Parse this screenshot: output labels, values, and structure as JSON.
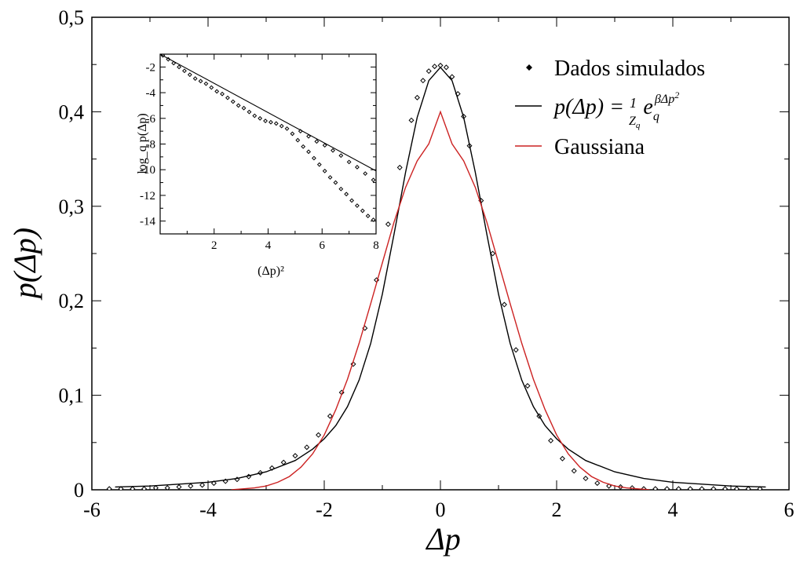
{
  "chart_data": [
    {
      "type": "scatter",
      "role": "main",
      "xlabel": "Δp",
      "ylabel": "p(Δp)",
      "xlim": [
        -6,
        6
      ],
      "ylim": [
        0,
        0.5
      ],
      "x_ticks": [
        "-6",
        "-4",
        "-2",
        "0",
        "2",
        "4",
        "6"
      ],
      "y_ticks": [
        "0",
        "0,1",
        "0,2",
        "0,3",
        "0,4",
        "0,5"
      ],
      "grid": false,
      "legend_position": "top-right",
      "legend": [
        "Dados simulados",
        "p(Δp) = (1/Z_q) e_q^(βΔp²)",
        "Gaussiana"
      ],
      "series": [
        {
          "name": "Dados simulados",
          "kind": "markers",
          "marker": "diamond",
          "color": "#000000",
          "x": [
            -5.7,
            -5.5,
            -5.3,
            -5.1,
            -4.9,
            -4.7,
            -4.5,
            -4.3,
            -4.1,
            -3.9,
            -3.7,
            -3.5,
            -3.3,
            -3.1,
            -2.9,
            -2.7,
            -2.5,
            -2.3,
            -2.1,
            -1.9,
            -1.7,
            -1.5,
            -1.3,
            -1.1,
            -0.9,
            -0.7,
            -0.5,
            -0.4,
            -0.3,
            -0.2,
            -0.1,
            0.0,
            0.1,
            0.2,
            0.3,
            0.4,
            0.5,
            0.7,
            0.9,
            1.1,
            1.3,
            1.5,
            1.7,
            1.9,
            2.1,
            2.3,
            2.5,
            2.7,
            2.9,
            3.1,
            3.3,
            3.5,
            3.7,
            3.9,
            4.1,
            4.3,
            4.5,
            4.7,
            4.9,
            5.1,
            5.3,
            5.5
          ],
          "y": [
            0.001,
            0.001,
            0.001,
            0.001,
            0.002,
            0.002,
            0.003,
            0.004,
            0.005,
            0.007,
            0.009,
            0.011,
            0.014,
            0.018,
            0.023,
            0.029,
            0.036,
            0.045,
            0.058,
            0.078,
            0.103,
            0.133,
            0.171,
            0.222,
            0.281,
            0.341,
            0.391,
            0.415,
            0.433,
            0.443,
            0.448,
            0.449,
            0.447,
            0.437,
            0.419,
            0.395,
            0.364,
            0.306,
            0.25,
            0.196,
            0.148,
            0.11,
            0.078,
            0.052,
            0.033,
            0.02,
            0.012,
            0.007,
            0.004,
            0.003,
            0.002,
            0.001,
            0.001,
            0.001,
            0.001,
            0.001,
            0.001,
            0.001,
            0.001,
            0.001,
            0.001,
            0.001
          ]
        },
        {
          "name": "p(Δp) = (1/Z_q) e_q^(βΔp²)",
          "kind": "line",
          "color": "#000000",
          "x": [
            -5.6,
            -5.0,
            -4.5,
            -4.0,
            -3.5,
            -3.0,
            -2.5,
            -2.2,
            -2.0,
            -1.8,
            -1.6,
            -1.4,
            -1.2,
            -1.0,
            -0.8,
            -0.6,
            -0.4,
            -0.2,
            0.0,
            0.2,
            0.4,
            0.6,
            0.8,
            1.0,
            1.2,
            1.4,
            1.6,
            1.8,
            2.0,
            2.2,
            2.5,
            3.0,
            3.5,
            4.0,
            4.5,
            5.0,
            5.6
          ],
          "y": [
            0.003,
            0.004,
            0.006,
            0.008,
            0.012,
            0.019,
            0.031,
            0.043,
            0.054,
            0.068,
            0.088,
            0.116,
            0.155,
            0.207,
            0.27,
            0.336,
            0.394,
            0.433,
            0.447,
            0.433,
            0.394,
            0.336,
            0.27,
            0.207,
            0.155,
            0.116,
            0.088,
            0.068,
            0.054,
            0.043,
            0.031,
            0.019,
            0.012,
            0.008,
            0.006,
            0.004,
            0.003
          ]
        },
        {
          "name": "Gaussiana",
          "kind": "line",
          "color": "#cc2222",
          "x": [
            -3.6,
            -3.4,
            -3.2,
            -3.0,
            -2.8,
            -2.6,
            -2.4,
            -2.2,
            -2.0,
            -1.8,
            -1.6,
            -1.4,
            -1.2,
            -1.0,
            -0.8,
            -0.6,
            -0.4,
            -0.2,
            0.0,
            0.2,
            0.4,
            0.6,
            0.8,
            1.0,
            1.2,
            1.4,
            1.6,
            1.8,
            2.0,
            2.2,
            2.4,
            2.6,
            2.8,
            3.0,
            3.2,
            3.4,
            3.6
          ],
          "y": [
            0.0,
            0.001,
            0.002,
            0.004,
            0.008,
            0.014,
            0.024,
            0.038,
            0.058,
            0.085,
            0.117,
            0.155,
            0.197,
            0.24,
            0.283,
            0.32,
            0.348,
            0.366,
            0.4,
            0.366,
            0.348,
            0.32,
            0.283,
            0.24,
            0.197,
            0.155,
            0.117,
            0.085,
            0.058,
            0.038,
            0.024,
            0.014,
            0.008,
            0.004,
            0.002,
            0.001,
            0.0
          ]
        }
      ]
    },
    {
      "type": "scatter",
      "role": "inset",
      "xlabel": "(Δp)²",
      "ylabel": "log_q p(Δp)",
      "xlim": [
        0,
        8
      ],
      "ylim": [
        -15,
        -1
      ],
      "x_ticks": [
        "2",
        "4",
        "6",
        "8"
      ],
      "y_ticks": [
        "-2",
        "-4",
        "-6",
        "-8",
        "-10",
        "-12",
        "-14"
      ],
      "grid": false,
      "series": [
        {
          "kind": "markers",
          "marker": "diamond",
          "color": "#000000",
          "x": [
            0.1,
            0.3,
            0.5,
            0.7,
            0.9,
            1.1,
            1.3,
            1.5,
            1.7,
            1.9,
            2.1,
            2.3,
            2.5,
            2.7,
            2.9,
            3.1,
            3.3,
            3.5,
            3.7,
            3.9,
            4.1,
            4.3,
            4.5,
            4.7,
            4.9,
            5.1,
            5.3,
            5.5,
            5.7,
            5.9,
            6.1,
            6.3,
            6.5,
            6.7,
            6.9,
            7.1,
            7.3,
            7.5,
            7.7,
            7.9
          ],
          "y": [
            -1.1,
            -1.4,
            -1.7,
            -2.0,
            -2.3,
            -2.6,
            -2.9,
            -3.1,
            -3.3,
            -3.6,
            -3.9,
            -4.1,
            -4.4,
            -4.7,
            -5.0,
            -5.2,
            -5.5,
            -5.8,
            -6.0,
            -6.2,
            -6.3,
            -6.4,
            -6.6,
            -6.8,
            -7.2,
            -7.7,
            -8.2,
            -8.6,
            -9.1,
            -9.6,
            -10.1,
            -10.6,
            -11.0,
            -11.5,
            -11.9,
            -12.4,
            -12.8,
            -13.2,
            -13.6,
            -13.9
          ]
        },
        {
          "kind": "markers",
          "marker": "diamond",
          "color": "#000000",
          "x": [
            5.2,
            5.5,
            5.8,
            6.1,
            6.4,
            6.7,
            7.0,
            7.3,
            7.6,
            7.9
          ],
          "y": [
            -7.0,
            -7.4,
            -7.8,
            -8.1,
            -8.5,
            -8.9,
            -9.4,
            -9.8,
            -10.3,
            -10.8
          ]
        },
        {
          "kind": "line",
          "color": "#000000",
          "x": [
            0,
            8
          ],
          "y": [
            -1.0,
            -10.1
          ]
        }
      ]
    }
  ]
}
